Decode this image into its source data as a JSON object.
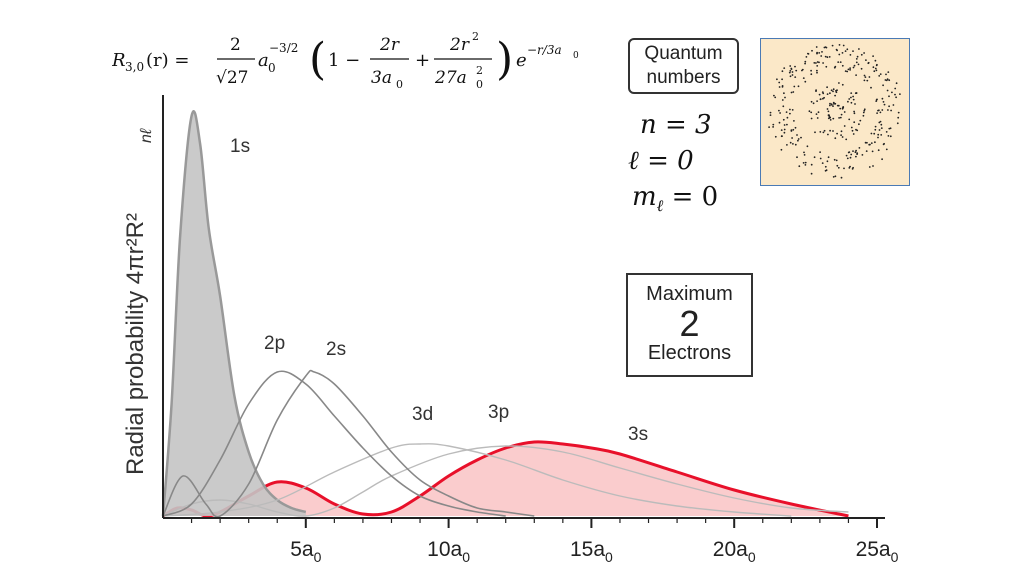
{
  "formula": {
    "lhs": "R",
    "lhs_sub": "3,0",
    "lhs_arg": "(r) =",
    "frac1_num": "2",
    "frac1_den": "√27",
    "a0": "a",
    "a0_sub": "0",
    "a0_exp": "−3/2",
    "term1": "1 −",
    "frac2_num": "2r",
    "frac2_den": "3a",
    "frac2_den_sub": "0",
    "plus": "+",
    "frac3_num": "2r",
    "frac3_num_sup": "2",
    "frac3_den": "27a",
    "frac3_den_sub": "0",
    "frac3_den_sup": "2",
    "exp_base": "e",
    "exp_power": "−r/3a",
    "exp_power_sub": "0"
  },
  "quantum_box": {
    "line1": "Quantum",
    "line2": "numbers"
  },
  "quantum_numbers": {
    "n": "n = 3",
    "l": "ℓ = 0",
    "m": "m",
    "m_sub": "ℓ",
    "m_val": " = 0"
  },
  "maximum_box": {
    "line1": "Maximum",
    "line2": "2",
    "line3": "Electrons"
  },
  "colors": {
    "highlight": "#e8102a",
    "highlight_fill": "#f9c6c8",
    "s1_fill": "#c4c4c4",
    "grey_curve": "#888888",
    "light_curve": "#bbbbbb"
  },
  "chart_data": {
    "type": "line",
    "ylabel": "Radial probability 4πr²R²",
    "ylabel_sub": "nℓ",
    "x_ticks": [
      {
        "value": 5,
        "label": "5a",
        "sub": "0"
      },
      {
        "value": 10,
        "label": "10a",
        "sub": "0"
      },
      {
        "value": 15,
        "label": "15a",
        "sub": "0"
      },
      {
        "value": 20,
        "label": "20a",
        "sub": "0"
      },
      {
        "value": 25,
        "label": "25a",
        "sub": "0"
      }
    ],
    "xlim": [
      0,
      25
    ],
    "series": [
      {
        "name": "1s",
        "style": "filled-grey",
        "x": [
          0,
          0.3,
          0.6,
          1,
          1.3,
          1.6,
          2,
          2.5,
          3,
          3.5,
          4,
          4.5,
          5
        ],
        "y": [
          0,
          0.28,
          0.7,
          1.0,
          0.93,
          0.72,
          0.55,
          0.3,
          0.16,
          0.08,
          0.04,
          0.02,
          0.01
        ]
      },
      {
        "name": "2p",
        "style": "grey",
        "x": [
          0,
          1,
          2,
          3,
          4,
          5,
          6,
          7,
          8,
          9,
          10,
          11,
          12
        ],
        "y": [
          0,
          0.03,
          0.14,
          0.28,
          0.36,
          0.33,
          0.25,
          0.17,
          0.1,
          0.05,
          0.025,
          0.01,
          0
        ]
      },
      {
        "name": "2s",
        "style": "grey",
        "x": [
          0,
          0.7,
          1.5,
          2,
          3,
          4,
          5,
          5.3,
          6,
          7,
          8,
          9,
          10,
          11,
          12,
          13
        ],
        "y": [
          0,
          0.1,
          0.03,
          0.0,
          0.08,
          0.24,
          0.35,
          0.36,
          0.33,
          0.25,
          0.16,
          0.09,
          0.05,
          0.02,
          0.01,
          0
        ]
      },
      {
        "name": "3d",
        "style": "light",
        "x": [
          0,
          2,
          4,
          6,
          8,
          9,
          10,
          12,
          14,
          16,
          18,
          20,
          22
        ],
        "y": [
          0,
          0.01,
          0.04,
          0.11,
          0.17,
          0.18,
          0.175,
          0.14,
          0.09,
          0.05,
          0.025,
          0.01,
          0
        ]
      },
      {
        "name": "3p",
        "style": "light",
        "x": [
          0,
          1,
          2,
          3,
          4,
          5,
          6,
          7,
          8,
          10,
          12,
          14,
          16,
          18,
          20,
          22,
          24
        ],
        "y": [
          0,
          0.03,
          0.04,
          0.03,
          0.01,
          0,
          0.02,
          0.06,
          0.1,
          0.155,
          0.175,
          0.16,
          0.12,
          0.08,
          0.045,
          0.02,
          0.01
        ]
      },
      {
        "name": "3s",
        "style": "highlight",
        "x": [
          0,
          0.5,
          1,
          1.5,
          2,
          3,
          4,
          5,
          6,
          7,
          8,
          9,
          10,
          11,
          12,
          13,
          14,
          15,
          16,
          18,
          20,
          22,
          24
        ],
        "y": [
          0,
          0.02,
          0.015,
          0,
          0.01,
          0.05,
          0.085,
          0.07,
          0.03,
          0.005,
          0.01,
          0.05,
          0.1,
          0.14,
          0.17,
          0.185,
          0.18,
          0.17,
          0.155,
          0.11,
          0.065,
          0.03,
          0.0
        ]
      }
    ]
  }
}
